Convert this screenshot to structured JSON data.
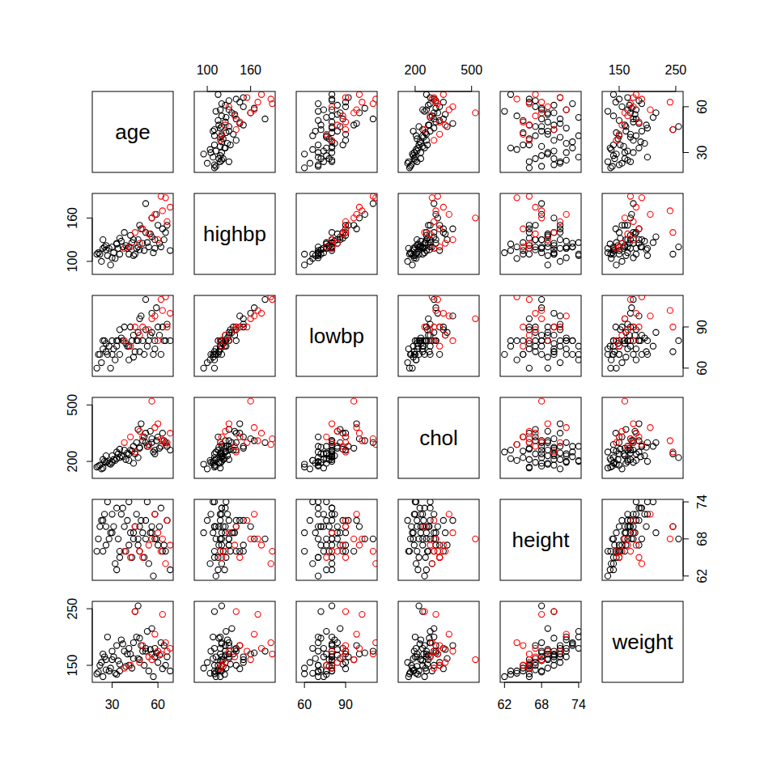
{
  "chart_data": {
    "type": "scatter_matrix",
    "variables": [
      {
        "name": "age",
        "lim": [
          17,
          70
        ],
        "ticks": [
          30,
          60
        ]
      },
      {
        "name": "highbp",
        "lim": [
          82,
          194
        ],
        "ticks": [
          100,
          160
        ]
      },
      {
        "name": "lowbp",
        "lim": [
          54,
          113
        ],
        "ticks": [
          60,
          90
        ]
      },
      {
        "name": "chol",
        "lim": [
          110,
          540
        ],
        "ticks": [
          200,
          500
        ]
      },
      {
        "name": "height",
        "lim": [
          61.3,
          74.4
        ],
        "ticks": [
          62,
          68,
          74
        ]
      },
      {
        "name": "weight",
        "lim": [
          120,
          263
        ],
        "ticks": [
          150,
          250
        ]
      }
    ],
    "series": [
      {
        "color": "#000000",
        "marker": "circle",
        "values": [
          [
            22,
            110,
            70,
            180,
            70,
            150
          ],
          [
            25,
            120,
            80,
            200,
            72,
            165
          ],
          [
            28,
            118,
            76,
            190,
            68,
            140
          ],
          [
            20,
            110,
            60,
            170,
            66,
            135
          ],
          [
            24,
            130,
            80,
            210,
            71,
            170
          ],
          [
            30,
            120,
            80,
            230,
            69,
            160
          ],
          [
            33,
            125,
            80,
            250,
            73,
            185
          ],
          [
            35,
            110,
            70,
            220,
            65,
            140
          ],
          [
            38,
            140,
            90,
            260,
            70,
            175
          ],
          [
            41,
            120,
            76,
            240,
            67,
            150
          ],
          [
            44,
            130,
            84,
            280,
            68,
            190
          ],
          [
            46,
            118,
            80,
            300,
            72,
            200
          ],
          [
            48,
            150,
            96,
            270,
            66,
            160
          ],
          [
            50,
            125,
            80,
            310,
            69,
            175
          ],
          [
            52,
            140,
            88,
            350,
            71,
            180
          ],
          [
            54,
            120,
            80,
            290,
            64,
            140
          ],
          [
            56,
            160,
            100,
            320,
            70,
            170
          ],
          [
            58,
            130,
            80,
            260,
            68,
            165
          ],
          [
            60,
            150,
            90,
            330,
            67,
            155
          ],
          [
            62,
            120,
            70,
            280,
            73,
            190
          ],
          [
            65,
            140,
            80,
            300,
            66,
            150
          ],
          [
            68,
            115,
            80,
            260,
            63,
            140
          ],
          [
            23,
            100,
            64,
            160,
            71,
            155
          ],
          [
            27,
            108,
            70,
            200,
            74,
            200
          ],
          [
            29,
            95,
            60,
            185,
            69,
            145
          ],
          [
            31,
            112,
            74,
            210,
            70,
            165
          ],
          [
            34,
            118,
            80,
            240,
            68,
            158
          ],
          [
            36,
            128,
            82,
            230,
            72,
            195
          ],
          [
            39,
            122,
            78,
            210,
            66,
            148
          ],
          [
            42,
            136,
            90,
            260,
            69,
            170
          ],
          [
            45,
            110,
            72,
            240,
            70,
            245
          ],
          [
            47,
            130,
            86,
            370,
            67,
            162
          ],
          [
            49,
            145,
            98,
            400,
            71,
            185
          ],
          [
            51,
            115,
            70,
            330,
            65,
            150
          ],
          [
            53,
            126,
            76,
            280,
            74,
            210
          ],
          [
            55,
            138,
            84,
            360,
            69,
            178
          ],
          [
            57,
            112,
            70,
            250,
            62,
            130
          ],
          [
            59,
            165,
            104,
            310,
            68,
            172
          ],
          [
            61,
            125,
            84,
            270,
            70,
            168
          ],
          [
            63,
            145,
            90,
            350,
            66,
            144
          ],
          [
            21,
            112,
            70,
            175,
            68,
            138
          ],
          [
            26,
            116,
            72,
            195,
            67,
            142
          ],
          [
            32,
            104,
            66,
            205,
            64,
            136
          ],
          [
            37,
            120,
            80,
            225,
            73,
            188
          ],
          [
            40,
            118,
            76,
            245,
            71,
            170
          ],
          [
            43,
            126,
            80,
            255,
            65,
            145
          ],
          [
            26,
            122,
            78,
            230,
            70,
            160
          ],
          [
            52,
            180,
            110,
            300,
            68,
            175
          ],
          [
            47,
            120,
            80,
            220,
            68,
            255
          ],
          [
            35,
            132,
            88,
            265,
            66,
            152
          ],
          [
            44,
            108,
            68,
            190,
            69,
            162
          ],
          [
            58,
            118,
            74,
            240,
            72,
            180
          ],
          [
            64,
            130,
            80,
            310,
            67,
            185
          ],
          [
            24,
            118,
            74,
            165,
            66,
            130
          ],
          [
            30,
            105,
            70,
            195,
            72,
            175
          ],
          [
            66,
            150,
            92,
            280,
            71,
            165
          ],
          [
            33,
            124,
            76,
            215,
            63,
            134
          ],
          [
            48,
            116,
            72,
            275,
            70,
            198
          ],
          [
            56,
            134,
            86,
            300,
            69,
            215
          ],
          [
            41,
            110,
            66,
            205,
            74,
            180
          ]
        ]
      },
      {
        "color": "#ff0000",
        "marker": "circle",
        "values": [
          [
            62,
            190,
            110,
            320,
            66,
            170
          ],
          [
            65,
            188,
            112,
            290,
            64,
            190
          ],
          [
            68,
            175,
            100,
            350,
            67,
            180
          ],
          [
            56,
            160,
            96,
            520,
            68,
            160
          ],
          [
            50,
            145,
            90,
            330,
            65,
            185
          ],
          [
            60,
            130,
            80,
            400,
            69,
            175
          ],
          [
            45,
            140,
            90,
            250,
            70,
            245
          ],
          [
            58,
            165,
            98,
            380,
            72,
            205
          ],
          [
            48,
            125,
            84,
            360,
            66,
            155
          ],
          [
            66,
            155,
            90,
            300,
            71,
            175
          ],
          [
            42,
            120,
            76,
            330,
            65,
            150
          ],
          [
            63,
            170,
            102,
            310,
            68,
            240
          ],
          [
            54,
            138,
            88,
            280,
            67,
            165
          ],
          [
            38,
            118,
            80,
            300,
            66,
            145
          ]
        ]
      }
    ]
  }
}
